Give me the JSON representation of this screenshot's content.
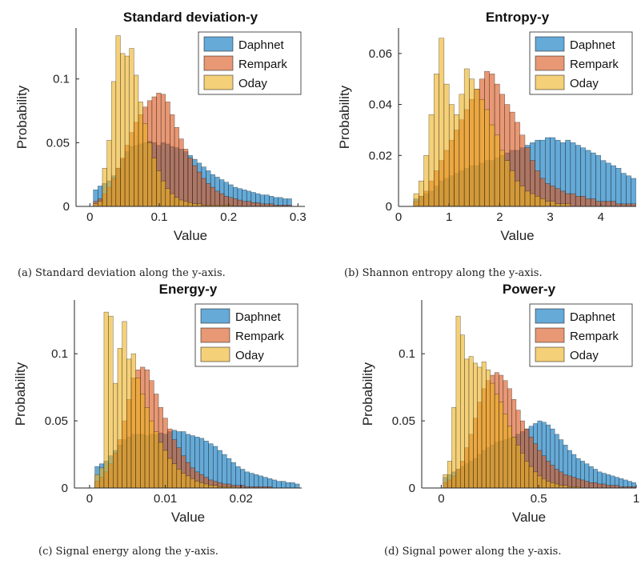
{
  "colors": {
    "Daphnet": "#0072BD",
    "Rempark": "#D95319",
    "Oday": "#EDB120"
  },
  "legend_order": [
    "Daphnet",
    "Rempark",
    "Oday"
  ],
  "chart_data": [
    {
      "type": "bar",
      "title": "Standard deviation-y",
      "xlabel": "Value",
      "ylabel": "Probability",
      "caption": "(a) Standard deviation along the y-axis.",
      "legend_position": "top-right",
      "xlim": [
        -0.02,
        0.31
      ],
      "ylim": [
        0,
        0.14
      ],
      "xticks": [
        0,
        0.1,
        0.2,
        0.3
      ],
      "yticks": [
        0,
        0.05,
        0.1
      ],
      "xtick_labels": [
        "0",
        "0.1",
        "0.2",
        "0.3"
      ],
      "ytick_labels": [
        "0",
        "0.05",
        "0.1"
      ],
      "bin_start": 0.005,
      "bin_width": 0.0065,
      "series": [
        {
          "name": "Daphnet",
          "values": [
            0.013,
            0.016,
            0.018,
            0.02,
            0.024,
            0.03,
            0.037,
            0.043,
            0.047,
            0.048,
            0.049,
            0.05,
            0.051,
            0.05,
            0.048,
            0.05,
            0.049,
            0.047,
            0.046,
            0.045,
            0.043,
            0.04,
            0.037,
            0.034,
            0.031,
            0.028,
            0.025,
            0.023,
            0.021,
            0.019,
            0.017,
            0.015,
            0.014,
            0.013,
            0.012,
            0.011,
            0.01,
            0.009,
            0.009,
            0.008,
            0.007,
            0.007,
            0.006,
            0.006
          ]
        },
        {
          "name": "Rempark",
          "values": [
            0.004,
            0.006,
            0.01,
            0.015,
            0.022,
            0.03,
            0.038,
            0.048,
            0.058,
            0.066,
            0.072,
            0.078,
            0.083,
            0.086,
            0.089,
            0.088,
            0.082,
            0.072,
            0.062,
            0.053,
            0.045,
            0.038,
            0.032,
            0.027,
            0.022,
            0.018,
            0.015,
            0.012,
            0.01,
            0.008,
            0.007,
            0.006,
            0.005,
            0.004,
            0.004,
            0.003,
            0.003,
            0.002,
            0.002,
            0.002,
            0.001,
            0.001,
            0.001,
            0.001
          ]
        },
        {
          "name": "Oday",
          "values": [
            0.002,
            0.004,
            0.03,
            0.052,
            0.098,
            0.134,
            0.12,
            0.118,
            0.124,
            0.103,
            0.082,
            0.065,
            0.05,
            0.038,
            0.028,
            0.02,
            0.014,
            0.01,
            0.007,
            0.005,
            0.004,
            0.003,
            0.002,
            0.002,
            0.001,
            0.001,
            0.001,
            0.001,
            0.001,
            0.001,
            0.001,
            0,
            0,
            0,
            0,
            0,
            0,
            0,
            0,
            0,
            0,
            0,
            0,
            0
          ]
        }
      ]
    },
    {
      "type": "bar",
      "title": "Entropy-y",
      "xlabel": "Value",
      "ylabel": "Probability",
      "caption": "(b) Shannon entropy along the y-axis.",
      "legend_position": "top-right",
      "xlim": [
        0,
        4.7
      ],
      "ylim": [
        0,
        0.07
      ],
      "xticks": [
        0,
        1,
        2,
        3,
        4
      ],
      "yticks": [
        0,
        0.02,
        0.04,
        0.06
      ],
      "xtick_labels": [
        "0",
        "1",
        "2",
        "3",
        "4"
      ],
      "ytick_labels": [
        "0",
        "0.02",
        "0.04",
        "0.06"
      ],
      "bin_start": 0.3,
      "bin_width": 0.1,
      "series": [
        {
          "name": "Daphnet",
          "values": [
            0.003,
            0.004,
            0.005,
            0.006,
            0.008,
            0.01,
            0.011,
            0.012,
            0.013,
            0.014,
            0.015,
            0.016,
            0.016,
            0.017,
            0.018,
            0.018,
            0.019,
            0.02,
            0.021,
            0.022,
            0.022,
            0.023,
            0.024,
            0.025,
            0.026,
            0.026,
            0.027,
            0.027,
            0.026,
            0.025,
            0.026,
            0.025,
            0.024,
            0.023,
            0.022,
            0.021,
            0.02,
            0.018,
            0.017,
            0.016,
            0.015,
            0.013,
            0.012,
            0.011
          ]
        },
        {
          "name": "Rempark",
          "values": [
            0.002,
            0.004,
            0.006,
            0.01,
            0.014,
            0.018,
            0.022,
            0.026,
            0.03,
            0.034,
            0.038,
            0.042,
            0.046,
            0.05,
            0.053,
            0.052,
            0.048,
            0.044,
            0.04,
            0.037,
            0.033,
            0.028,
            0.023,
            0.018,
            0.014,
            0.011,
            0.009,
            0.008,
            0.007,
            0.006,
            0.005,
            0.005,
            0.004,
            0.004,
            0.003,
            0.003,
            0.002,
            0.002,
            0.002,
            0.002,
            0.001,
            0.001,
            0.001,
            0.001
          ]
        },
        {
          "name": "Oday",
          "values": [
            0.005,
            0.01,
            0.02,
            0.036,
            0.052,
            0.066,
            0.048,
            0.04,
            0.036,
            0.044,
            0.054,
            0.05,
            0.046,
            0.042,
            0.038,
            0.032,
            0.028,
            0.022,
            0.018,
            0.014,
            0.01,
            0.008,
            0.006,
            0.005,
            0.004,
            0.003,
            0.002,
            0.002,
            0.001,
            0.001,
            0.001,
            0,
            0,
            0,
            0,
            0,
            0,
            0,
            0,
            0,
            0,
            0,
            0,
            0
          ]
        }
      ]
    },
    {
      "type": "bar",
      "title": "Energy-y",
      "xlabel": "Value",
      "ylabel": "Probability",
      "caption": "(c) Signal energy along the y-axis.",
      "legend_position": "top-right",
      "xlim": [
        -0.002,
        0.028
      ],
      "ylim": [
        0,
        0.14
      ],
      "xticks": [
        0,
        0.01,
        0.02
      ],
      "yticks": [
        0,
        0.05,
        0.1
      ],
      "xtick_labels": [
        "0",
        "0.01",
        "0.02"
      ],
      "ytick_labels": [
        "0",
        "0.05",
        "0.1"
      ],
      "bin_start": 0.0007,
      "bin_width": 0.0006,
      "series": [
        {
          "name": "Daphnet",
          "values": [
            0.016,
            0.018,
            0.02,
            0.024,
            0.028,
            0.032,
            0.036,
            0.038,
            0.04,
            0.04,
            0.04,
            0.039,
            0.04,
            0.04,
            0.041,
            0.04,
            0.042,
            0.043,
            0.042,
            0.042,
            0.04,
            0.039,
            0.038,
            0.037,
            0.035,
            0.033,
            0.031,
            0.028,
            0.025,
            0.022,
            0.019,
            0.016,
            0.014,
            0.012,
            0.011,
            0.01,
            0.009,
            0.008,
            0.007,
            0.006,
            0.005,
            0.005,
            0.004,
            0.004,
            0.003
          ]
        },
        {
          "name": "Rempark",
          "values": [
            0.005,
            0.008,
            0.012,
            0.018,
            0.026,
            0.036,
            0.05,
            0.066,
            0.082,
            0.088,
            0.09,
            0.088,
            0.08,
            0.07,
            0.06,
            0.052,
            0.044,
            0.036,
            0.03,
            0.024,
            0.019,
            0.015,
            0.012,
            0.01,
            0.008,
            0.006,
            0.005,
            0.004,
            0.003,
            0.003,
            0.002,
            0.002,
            0.002,
            0.001,
            0.001,
            0.001,
            0.001,
            0.001,
            0.001,
            0,
            0,
            0,
            0,
            0,
            0
          ]
        },
        {
          "name": "Oday",
          "values": [
            0.01,
            0.015,
            0.131,
            0.128,
            0.078,
            0.104,
            0.124,
            0.096,
            0.1,
            0.082,
            0.07,
            0.06,
            0.05,
            0.042,
            0.034,
            0.028,
            0.022,
            0.018,
            0.014,
            0.011,
            0.009,
            0.007,
            0.005,
            0.004,
            0.003,
            0.002,
            0.002,
            0.001,
            0.001,
            0.001,
            0.001,
            0,
            0,
            0,
            0,
            0,
            0,
            0,
            0,
            0,
            0,
            0,
            0,
            0,
            0
          ]
        }
      ]
    },
    {
      "type": "bar",
      "title": "Power-y",
      "xlabel": "Value",
      "ylabel": "Probability",
      "caption": "(d) Signal power along the y-axis.",
      "legend_position": "top-right",
      "xlim": [
        -0.1,
        1.0
      ],
      "ylim": [
        0,
        0.14
      ],
      "xticks": [
        0,
        0.5,
        1
      ],
      "yticks": [
        0,
        0.05,
        0.1
      ],
      "xtick_labels": [
        "0",
        "0.5",
        "1"
      ],
      "ytick_labels": [
        "0",
        "0.05",
        "0.1"
      ],
      "bin_start": 0.01,
      "bin_width": 0.022,
      "series": [
        {
          "name": "Daphnet",
          "values": [
            0.008,
            0.01,
            0.012,
            0.014,
            0.016,
            0.018,
            0.02,
            0.022,
            0.025,
            0.028,
            0.03,
            0.032,
            0.034,
            0.035,
            0.036,
            0.037,
            0.038,
            0.04,
            0.042,
            0.044,
            0.046,
            0.048,
            0.05,
            0.049,
            0.047,
            0.044,
            0.04,
            0.036,
            0.032,
            0.028,
            0.025,
            0.022,
            0.02,
            0.018,
            0.016,
            0.014,
            0.012,
            0.011,
            0.01,
            0.009,
            0.008,
            0.007,
            0.006,
            0.005,
            0.004
          ]
        },
        {
          "name": "Rempark",
          "values": [
            0.004,
            0.006,
            0.009,
            0.014,
            0.02,
            0.03,
            0.04,
            0.052,
            0.064,
            0.074,
            0.08,
            0.084,
            0.086,
            0.084,
            0.08,
            0.074,
            0.066,
            0.058,
            0.05,
            0.044,
            0.038,
            0.033,
            0.028,
            0.024,
            0.02,
            0.017,
            0.014,
            0.012,
            0.01,
            0.009,
            0.008,
            0.007,
            0.006,
            0.005,
            0.004,
            0.004,
            0.003,
            0.003,
            0.002,
            0.002,
            0.002,
            0.001,
            0.001,
            0.001,
            0.001
          ]
        },
        {
          "name": "Oday",
          "values": [
            0.01,
            0.02,
            0.06,
            0.128,
            0.114,
            0.096,
            0.098,
            0.093,
            0.09,
            0.094,
            0.088,
            0.078,
            0.07,
            0.064,
            0.055,
            0.046,
            0.038,
            0.032,
            0.026,
            0.02,
            0.016,
            0.012,
            0.009,
            0.007,
            0.005,
            0.004,
            0.003,
            0.002,
            0.002,
            0.001,
            0.001,
            0.001,
            0,
            0,
            0,
            0,
            0,
            0,
            0,
            0,
            0,
            0,
            0,
            0,
            0
          ]
        }
      ]
    }
  ]
}
